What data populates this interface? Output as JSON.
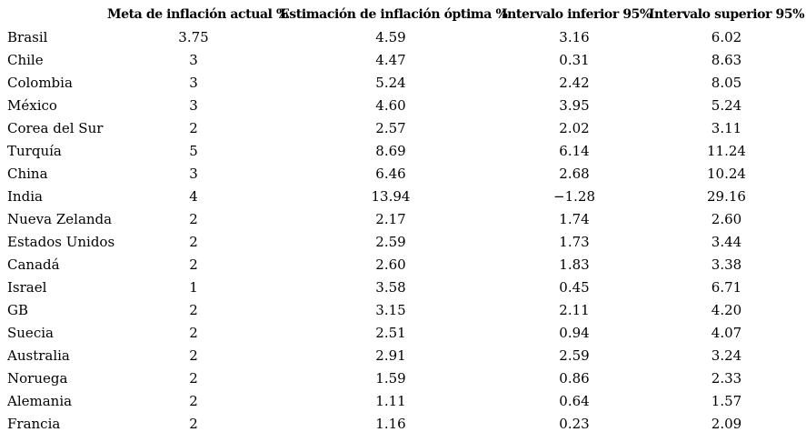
{
  "table": {
    "headers": [
      "",
      "Meta de inflación actual %",
      "Estimación de inflación óptima %",
      "Intervalo inferior 95%",
      "Intervalo superior 95%"
    ],
    "rows": [
      [
        "Brasil",
        "3.75",
        "4.59",
        "3.16",
        "6.02"
      ],
      [
        "Chile",
        "3",
        "4.47",
        "0.31",
        "8.63"
      ],
      [
        "Colombia",
        "3",
        "5.24",
        "2.42",
        "8.05"
      ],
      [
        "México",
        "3",
        "4.60",
        "3.95",
        "5.24"
      ],
      [
        "Corea del Sur",
        "2",
        "2.57",
        "2.02",
        "3.11"
      ],
      [
        "Turquía",
        "5",
        "8.69",
        "6.14",
        "11.24"
      ],
      [
        "China",
        "3",
        "6.46",
        "2.68",
        "10.24"
      ],
      [
        "India",
        "4",
        "13.94",
        "−1.28",
        "29.16"
      ],
      [
        "Nueva Zelanda",
        "2",
        "2.17",
        "1.74",
        "2.60"
      ],
      [
        "Estados Unidos",
        "2",
        "2.59",
        "1.73",
        "3.44"
      ],
      [
        "Canadá",
        "2",
        "2.60",
        "1.83",
        "3.38"
      ],
      [
        "Israel",
        "1",
        "3.58",
        "0.45",
        "6.71"
      ],
      [
        "GB",
        "2",
        "3.15",
        "2.11",
        "4.20"
      ],
      [
        "Suecia",
        "2",
        "2.51",
        "0.94",
        "4.07"
      ],
      [
        "Australia",
        "2",
        "2.91",
        "2.59",
        "3.24"
      ],
      [
        "Noruega",
        "2",
        "1.59",
        "0.86",
        "2.33"
      ],
      [
        "Alemania",
        "2",
        "1.11",
        "0.64",
        "1.57"
      ],
      [
        "Francia",
        "2",
        "1.16",
        "0.23",
        "2.09"
      ]
    ],
    "text_color": "#000000",
    "background_color": "#ffffff"
  }
}
